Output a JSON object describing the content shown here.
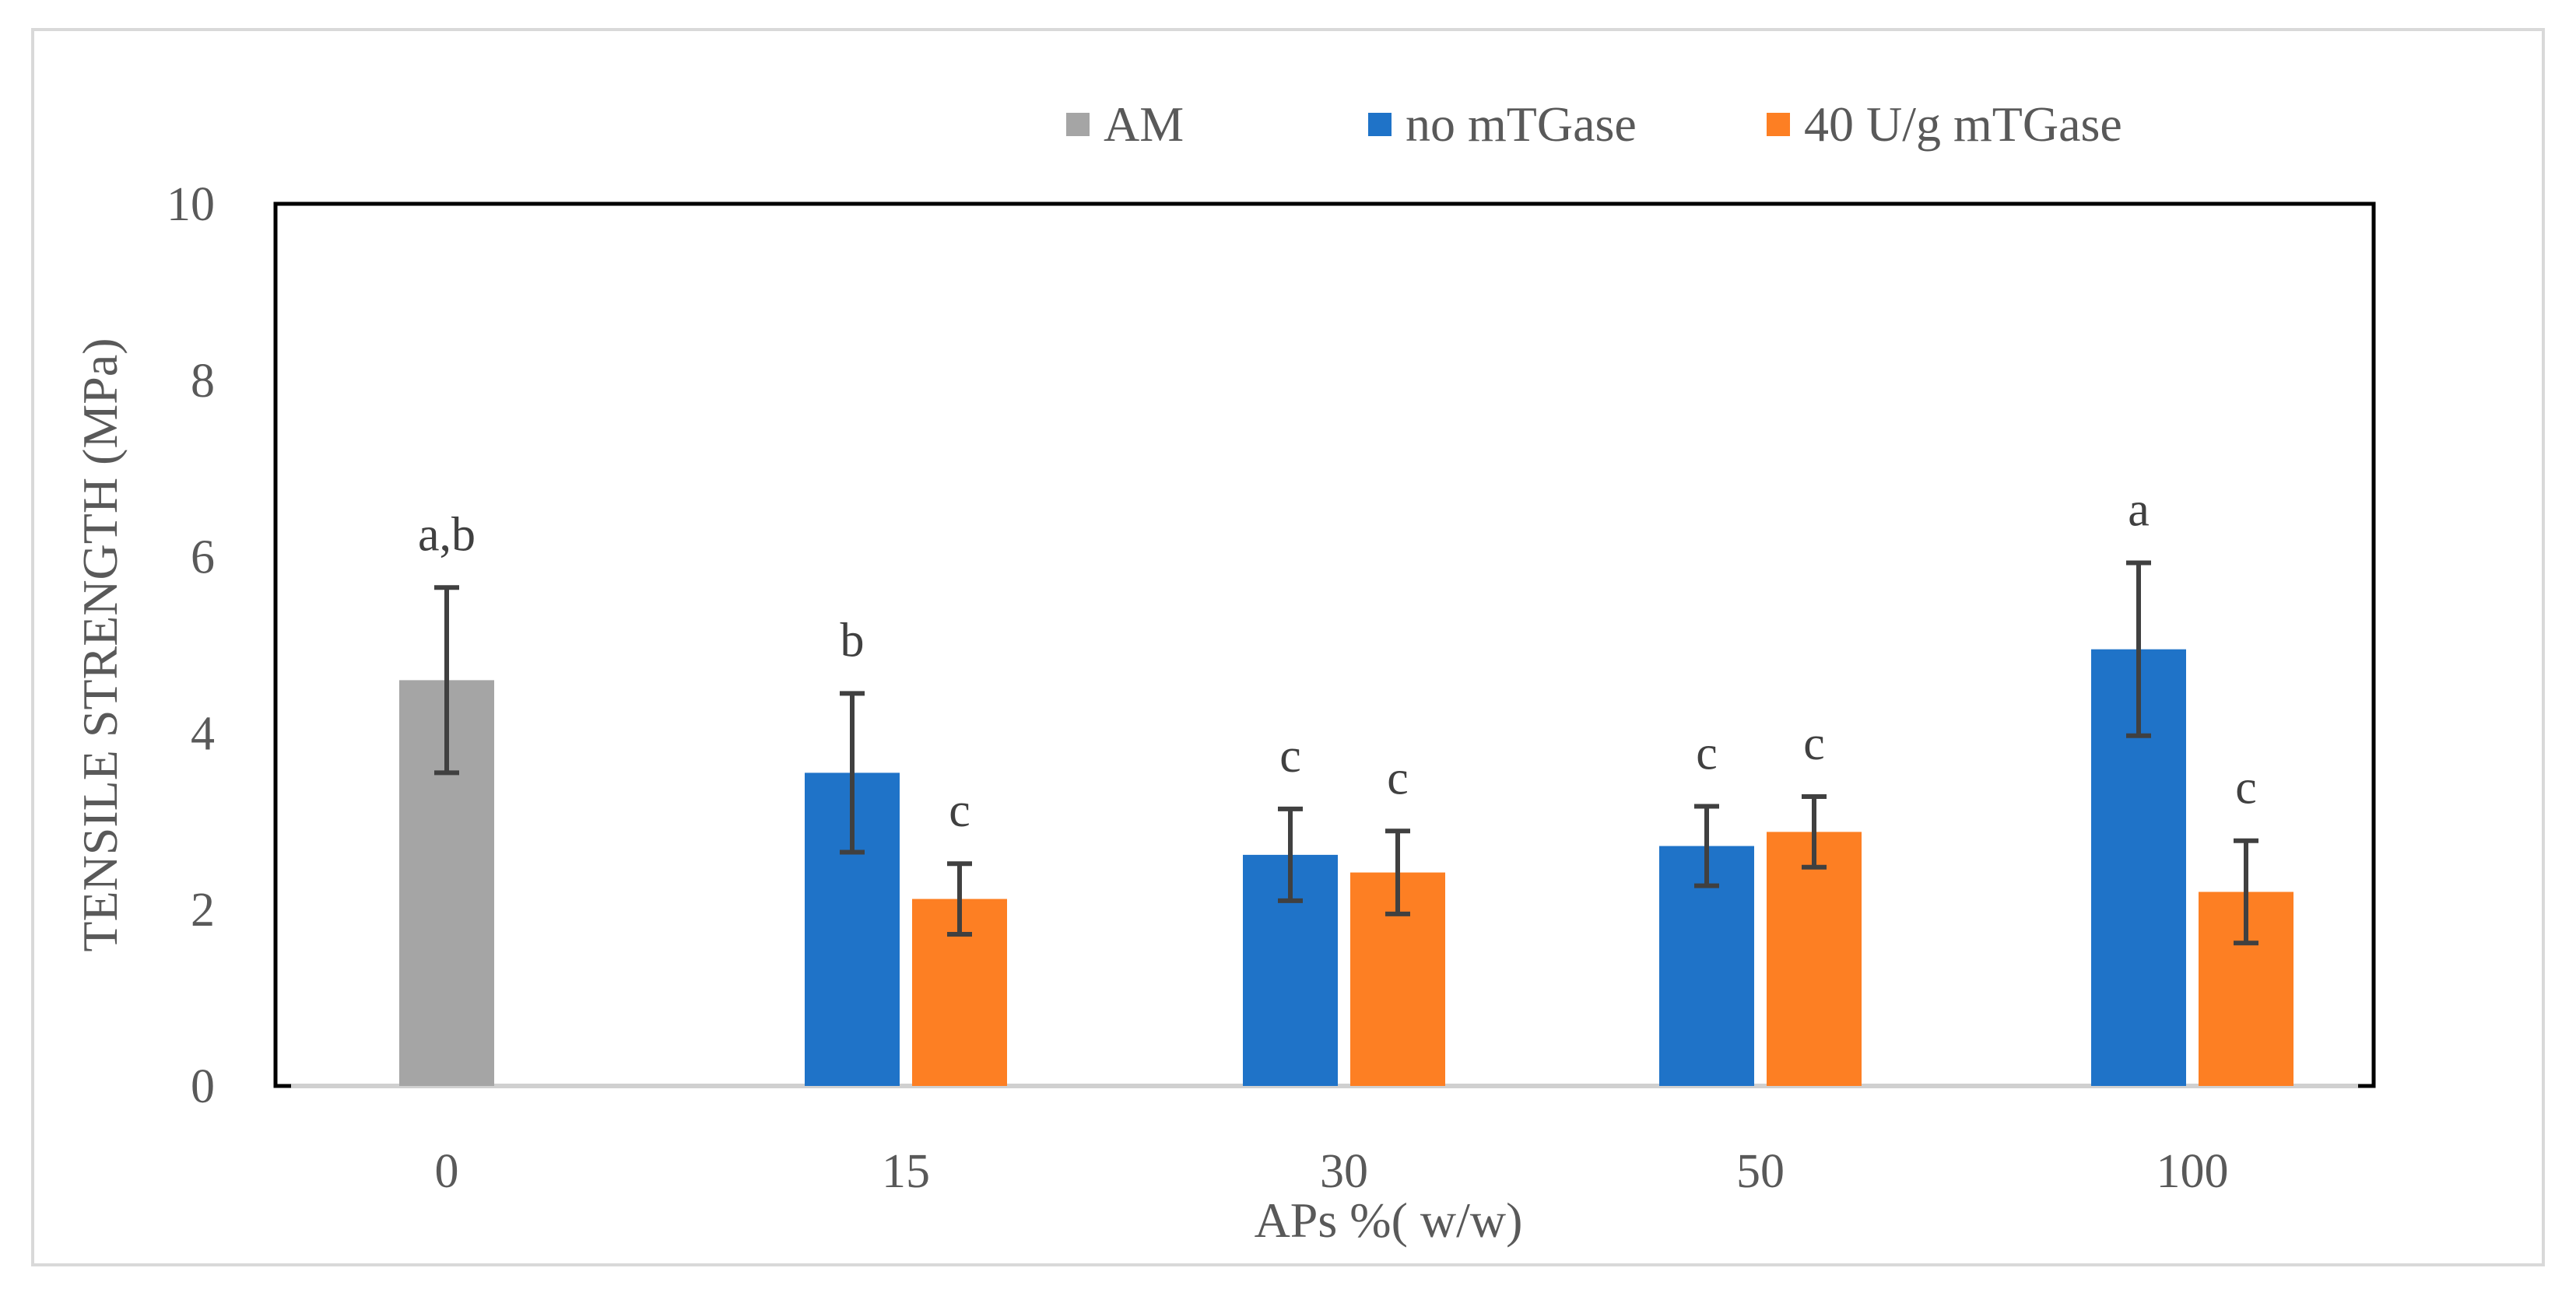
{
  "chart_data": {
    "type": "bar",
    "title": "",
    "xlabel": "APs  %( w/w)",
    "ylabel": "TENSILE STRENGTH (MPa)",
    "ylim": [
      0,
      10
    ],
    "yticks": [
      0,
      2,
      4,
      6,
      8,
      10
    ],
    "categories": [
      "0",
      "15",
      "30",
      "50",
      "100"
    ],
    "legend_position": "top-right",
    "series": [
      {
        "name": "AM",
        "color": "#a5a5a5",
        "values": [
          4.6,
          null,
          null,
          null,
          null
        ],
        "errors": [
          1.05,
          null,
          null,
          null,
          null
        ],
        "labels": [
          "a,b",
          null,
          null,
          null,
          null
        ]
      },
      {
        "name": "no mTGase",
        "color": "#1f73c8",
        "values": [
          null,
          3.55,
          2.62,
          2.72,
          4.95
        ],
        "errors": [
          null,
          0.9,
          0.52,
          0.45,
          0.98
        ],
        "labels": [
          null,
          "b",
          "c",
          "c",
          "a"
        ]
      },
      {
        "name": "40 U/g mTGase",
        "color": "#fd7f23",
        "values": [
          null,
          2.12,
          2.42,
          2.88,
          2.2
        ],
        "errors": [
          null,
          0.4,
          0.47,
          0.4,
          0.58
        ],
        "labels": [
          null,
          "c",
          "c",
          "c",
          "c"
        ]
      }
    ]
  }
}
